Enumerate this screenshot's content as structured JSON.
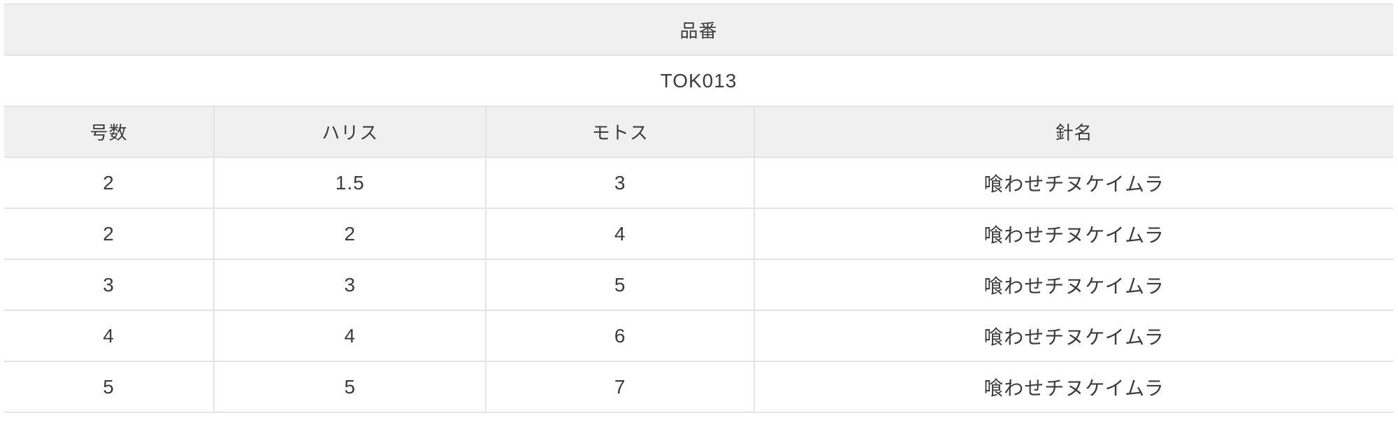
{
  "table": {
    "part_number_label": "品番",
    "part_number_value": "TOK013",
    "columns": [
      "号数",
      "ハリス",
      "モトス",
      "針名"
    ],
    "rows": [
      [
        "2",
        "1.5",
        "3",
        "喰わせチヌケイムラ"
      ],
      [
        "2",
        "2",
        "4",
        "喰わせチヌケイムラ"
      ],
      [
        "3",
        "3",
        "5",
        "喰わせチヌケイムラ"
      ],
      [
        "4",
        "4",
        "6",
        "喰わせチヌケイムラ"
      ],
      [
        "5",
        "5",
        "7",
        "喰わせチヌケイムラ"
      ]
    ],
    "colors": {
      "header_bg": "#f0f0f0",
      "row_bg": "#ffffff",
      "border": "#e4e4e4",
      "text": "#3c3c3c"
    }
  }
}
